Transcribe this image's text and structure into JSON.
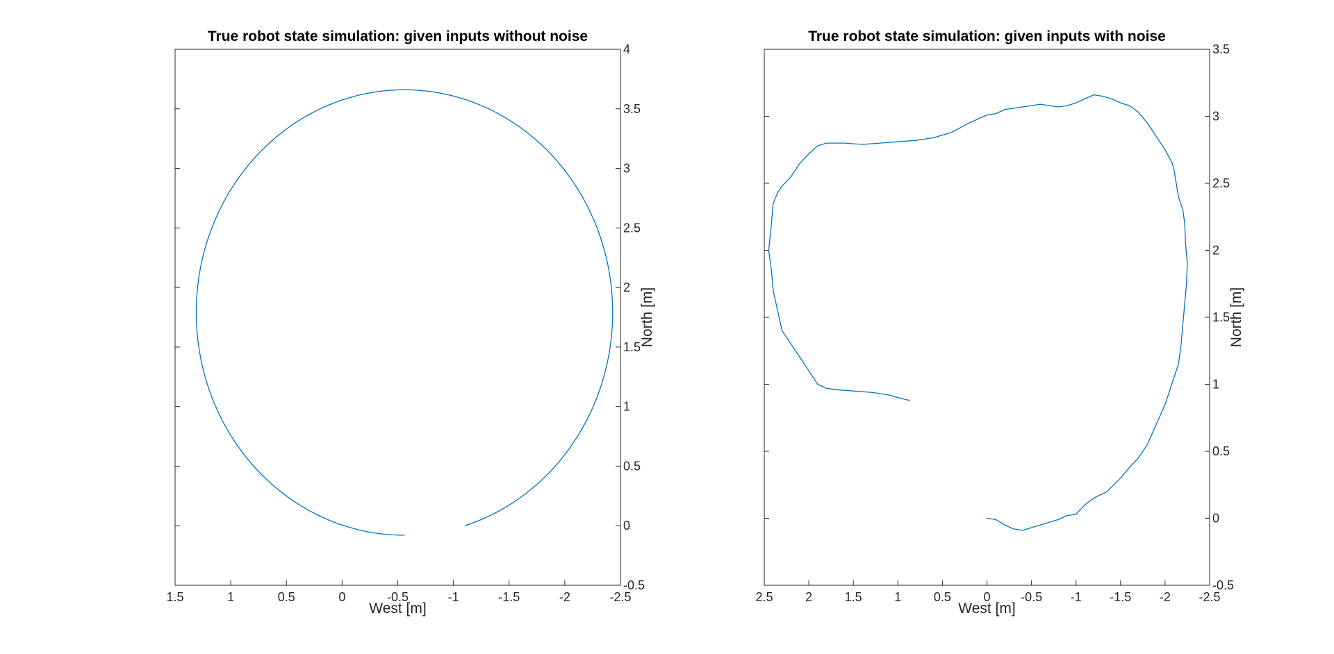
{
  "figure": {
    "background": "#ffffff",
    "axis_color": "#262626"
  },
  "chart_data": [
    {
      "type": "line",
      "title": "True robot state simulation: given inputs without noise",
      "xlabel": "West [m]",
      "ylabel": "North [m]",
      "x_reversed": true,
      "y_axis_side": "right",
      "xlim": [
        -2.5,
        1.5
      ],
      "ylim": [
        -0.5,
        4
      ],
      "xticks": [
        1.5,
        1,
        0.5,
        0,
        -0.5,
        -1,
        -1.5,
        -2,
        -2.5
      ],
      "xtick_labels": [
        "1.5",
        "1",
        "0.5",
        "0",
        "-0.5",
        "-1",
        "-1.5",
        "-2",
        "-2.5"
      ],
      "yticks": [
        -0.5,
        0,
        0.5,
        1,
        1.5,
        2,
        2.5,
        3,
        3.5,
        4
      ],
      "ytick_labels": [
        "-0.5",
        "0",
        "0.5",
        "1",
        "1.5",
        "2",
        "2.5",
        "3",
        "3.5",
        "4"
      ],
      "grid": false,
      "series": [
        {
          "color": "#0072BD",
          "shape": "ellipse",
          "center": [
            -0.56,
            1.79
          ],
          "radius_x": 1.87,
          "radius_y": 1.87,
          "start_angle_deg": -90,
          "sweep_deg": 343
        }
      ]
    },
    {
      "type": "line",
      "title": "True robot state simulation: given inputs with noise",
      "xlabel": "West [m]",
      "ylabel": "North [m]",
      "x_reversed": true,
      "y_axis_side": "right",
      "xlim": [
        -2.5,
        2.5
      ],
      "ylim": [
        -0.5,
        3.5
      ],
      "xticks": [
        2.5,
        2,
        1.5,
        1,
        0.5,
        0,
        -0.5,
        -1,
        -1.5,
        -2,
        -2.5
      ],
      "xtick_labels": [
        "2.5",
        "2",
        "1.5",
        "1",
        "0.5",
        "0",
        "-0.5",
        "-1",
        "-1.5",
        "-2",
        "-2.5"
      ],
      "yticks": [
        -0.5,
        0,
        0.5,
        1,
        1.5,
        2,
        2.5,
        3,
        3.5
      ],
      "ytick_labels": [
        "-0.5",
        "0",
        "0.5",
        "1",
        "1.5",
        "2",
        "2.5",
        "3",
        "3.5"
      ],
      "grid": false,
      "series": [
        {
          "color": "#0072BD",
          "x": [
            0,
            -0.1,
            -0.2,
            -0.3,
            -0.4,
            -0.5,
            -0.6,
            -0.7,
            -0.8,
            -0.9,
            -1.0,
            -1.1,
            -1.2,
            -1.35,
            -1.5,
            -1.6,
            -1.7,
            -1.8,
            -1.9,
            -2.0,
            -2.05,
            -2.1,
            -2.15,
            -2.18,
            -2.2,
            -2.22,
            -2.24,
            -2.25,
            -2.23,
            -2.22,
            -2.2,
            -2.15,
            -2.1,
            -2.08,
            -2.0,
            -1.9,
            -1.8,
            -1.7,
            -1.6,
            -1.5,
            -1.4,
            -1.3,
            -1.2,
            -1.1,
            -1.0,
            -0.9,
            -0.8,
            -0.7,
            -0.6,
            -0.5,
            -0.4,
            -0.3,
            -0.2,
            -0.1,
            0,
            0.1,
            0.2,
            0.4,
            0.6,
            0.8,
            1.0,
            1.2,
            1.4,
            1.6,
            1.8,
            1.9,
            2.0,
            2.1,
            2.2,
            2.3,
            2.35,
            2.4,
            2.42,
            2.45,
            2.42,
            2.4,
            2.35,
            2.3,
            2.2,
            2.1,
            2.0,
            1.95,
            1.9,
            1.8,
            1.7,
            1.5,
            1.3,
            1.1,
            1.0,
            0.87
          ],
          "y": [
            0,
            -0.01,
            -0.05,
            -0.08,
            -0.09,
            -0.07,
            -0.05,
            -0.03,
            -0.01,
            0.02,
            0.03,
            0.1,
            0.15,
            0.2,
            0.3,
            0.38,
            0.45,
            0.55,
            0.7,
            0.85,
            0.95,
            1.05,
            1.15,
            1.3,
            1.45,
            1.6,
            1.75,
            1.9,
            2.05,
            2.2,
            2.3,
            2.4,
            2.6,
            2.65,
            2.75,
            2.85,
            2.95,
            3.03,
            3.08,
            3.1,
            3.13,
            3.15,
            3.16,
            3.13,
            3.1,
            3.08,
            3.07,
            3.08,
            3.09,
            3.08,
            3.07,
            3.06,
            3.05,
            3.02,
            3.01,
            2.98,
            2.95,
            2.88,
            2.84,
            2.82,
            2.81,
            2.8,
            2.79,
            2.8,
            2.8,
            2.78,
            2.72,
            2.65,
            2.55,
            2.48,
            2.43,
            2.35,
            2.2,
            2.0,
            1.85,
            1.7,
            1.55,
            1.4,
            1.3,
            1.2,
            1.1,
            1.05,
            1.0,
            0.97,
            0.96,
            0.95,
            0.94,
            0.92,
            0.9,
            0.88
          ]
        }
      ]
    }
  ]
}
